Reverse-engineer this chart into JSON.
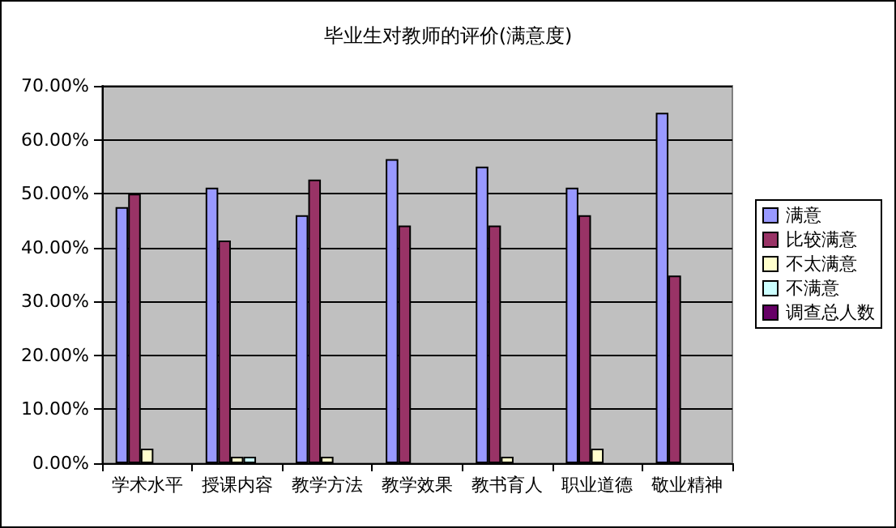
{
  "chart_data": {
    "type": "bar",
    "title": "毕业生对教师的评价(满意度)",
    "categories": [
      "学术水平",
      "授课内容",
      "教学方法",
      "教学效果",
      "教书育人",
      "职业道德",
      "敬业精神"
    ],
    "series": [
      {
        "name": "满意",
        "color": "#9999ff",
        "values": [
          47.5,
          51.1,
          46.0,
          56.4,
          55.0,
          51.1,
          65.0
        ]
      },
      {
        "name": "比较满意",
        "color": "#993366",
        "values": [
          50.0,
          41.3,
          52.6,
          44.1,
          44.1,
          46.0,
          34.8
        ]
      },
      {
        "name": "不太满意",
        "color": "#ffffcc",
        "values": [
          2.7,
          1.2,
          1.2,
          null,
          1.2,
          2.7,
          null
        ]
      },
      {
        "name": "不满意",
        "color": "#ccffff",
        "values": [
          null,
          1.2,
          null,
          null,
          null,
          null,
          null
        ]
      },
      {
        "name": "调查总人数",
        "color": "#660066",
        "values": [
          null,
          null,
          null,
          null,
          null,
          null,
          null
        ]
      }
    ],
    "ylim": [
      0,
      70
    ],
    "yticks": [
      {
        "value": 0,
        "label": "0.00%"
      },
      {
        "value": 10,
        "label": "10.00%"
      },
      {
        "value": 20,
        "label": "20.00%"
      },
      {
        "value": 30,
        "label": "30.00%"
      },
      {
        "value": 40,
        "label": "40.00%"
      },
      {
        "value": 50,
        "label": "50.00%"
      },
      {
        "value": 60,
        "label": "60.00%"
      },
      {
        "value": 70,
        "label": "70.00%"
      }
    ],
    "grid": "y",
    "legend": "right"
  }
}
